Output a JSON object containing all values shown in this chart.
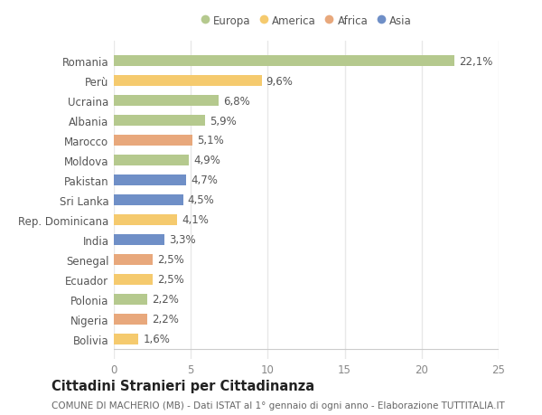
{
  "countries": [
    "Romania",
    "Perù",
    "Ucraina",
    "Albania",
    "Marocco",
    "Moldova",
    "Pakistan",
    "Sri Lanka",
    "Rep. Dominicana",
    "India",
    "Senegal",
    "Ecuador",
    "Polonia",
    "Nigeria",
    "Bolivia"
  ],
  "values": [
    22.1,
    9.6,
    6.8,
    5.9,
    5.1,
    4.9,
    4.7,
    4.5,
    4.1,
    3.3,
    2.5,
    2.5,
    2.2,
    2.2,
    1.6
  ],
  "continents": [
    "Europa",
    "America",
    "Europa",
    "Europa",
    "Africa",
    "Europa",
    "Asia",
    "Asia",
    "America",
    "Asia",
    "Africa",
    "America",
    "Europa",
    "Africa",
    "America"
  ],
  "colors": {
    "Europa": "#b5c98e",
    "America": "#f5ca6e",
    "Africa": "#e8a87c",
    "Asia": "#6f8fc7"
  },
  "legend_order": [
    "Europa",
    "America",
    "Africa",
    "Asia"
  ],
  "xlim": [
    0,
    25
  ],
  "xticks": [
    0,
    5,
    10,
    15,
    20,
    25
  ],
  "title": "Cittadini Stranieri per Cittadinanza",
  "subtitle": "COMUNE DI MACHERIO (MB) - Dati ISTAT al 1° gennaio di ogni anno - Elaborazione TUTTITALIA.IT",
  "bg_color": "#ffffff",
  "grid_color": "#e8e8e8",
  "bar_height": 0.55,
  "label_fontsize": 8.5,
  "tick_fontsize": 8.5,
  "title_fontsize": 10.5,
  "subtitle_fontsize": 7.5,
  "legend_fontsize": 8.5
}
